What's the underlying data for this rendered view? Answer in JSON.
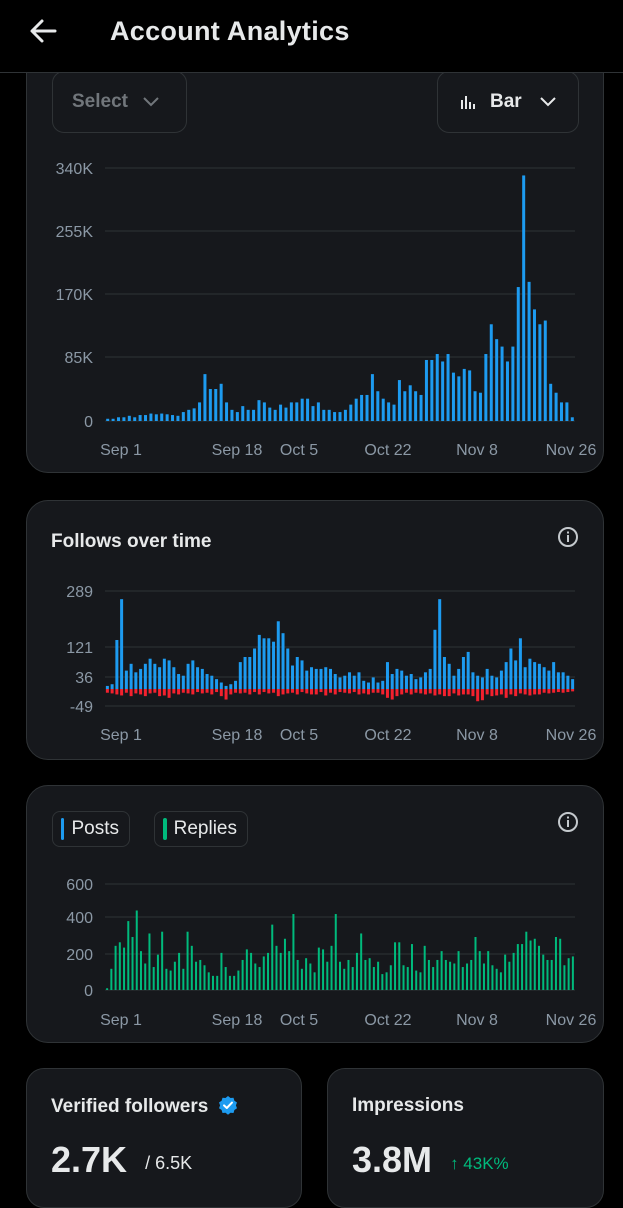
{
  "header": {
    "title": "Account Analytics"
  },
  "controls": {
    "select_label": "Select",
    "chart_type_label": "Bar"
  },
  "colors": {
    "blue": "#1d9bf0",
    "red": "#f4212e",
    "green": "#00ba7c",
    "grid": "#2f3336",
    "tick": "#8b98a5"
  },
  "chart_data": [
    {
      "id": "impressions",
      "type": "bar",
      "title": "",
      "xticks": [
        "Sep 1",
        "Sep 18",
        "Oct 5",
        "Oct 22",
        "Nov 8",
        "Nov 26"
      ],
      "yticks": [
        "340K",
        "255K",
        "170K",
        "85K",
        "0"
      ],
      "ylim": [
        0,
        340000
      ],
      "grid": true,
      "series": [
        {
          "color": "#1d9bf0",
          "values": [
            3000,
            3000,
            5000,
            5000,
            7000,
            5000,
            8000,
            8000,
            10000,
            9000,
            10000,
            9000,
            8000,
            7000,
            12000,
            15000,
            17000,
            25000,
            63000,
            43000,
            43000,
            50000,
            25000,
            15000,
            12000,
            20000,
            15000,
            15000,
            28000,
            25000,
            18000,
            15000,
            22000,
            18000,
            25000,
            25000,
            30000,
            30000,
            20000,
            25000,
            15000,
            15000,
            12000,
            12000,
            15000,
            22000,
            30000,
            35000,
            35000,
            63000,
            40000,
            30000,
            25000,
            22000,
            55000,
            40000,
            48000,
            40000,
            35000,
            82000,
            82000,
            90000,
            80000,
            90000,
            65000,
            60000,
            70000,
            68000,
            40000,
            38000,
            90000,
            130000,
            110000,
            100000,
            80000,
            100000,
            180000,
            330000,
            187000,
            150000,
            130000,
            135000,
            50000,
            38000,
            25000,
            25000,
            5000
          ]
        }
      ]
    },
    {
      "id": "follows",
      "type": "bar",
      "title": "Follows over time",
      "xticks": [
        "Sep 1",
        "Sep 18",
        "Oct 5",
        "Oct 22",
        "Nov 8",
        "Nov 26"
      ],
      "yticks": [
        "289",
        "121",
        "36",
        "-49"
      ],
      "ylim": [
        -49,
        289
      ],
      "grid": true,
      "series": [
        {
          "color": "#1d9bf0",
          "values": [
            10,
            15,
            145,
            265,
            55,
            75,
            50,
            60,
            75,
            90,
            75,
            65,
            90,
            85,
            65,
            45,
            40,
            75,
            85,
            65,
            60,
            45,
            40,
            30,
            20,
            10,
            15,
            25,
            80,
            95,
            95,
            120,
            160,
            150,
            150,
            140,
            200,
            165,
            120,
            70,
            95,
            85,
            55,
            65,
            60,
            60,
            65,
            60,
            45,
            35,
            40,
            50,
            40,
            50,
            25,
            20,
            35,
            20,
            25,
            80,
            45,
            60,
            55,
            40,
            45,
            30,
            35,
            50,
            60,
            175,
            265,
            95,
            75,
            40,
            60,
            95,
            110,
            50,
            40,
            35,
            60,
            40,
            35,
            55,
            80,
            120,
            85,
            150,
            65,
            90,
            80,
            75,
            65,
            55,
            80,
            50,
            50,
            40,
            30
          ],
          "negative": [
            -10,
            -12,
            -15,
            -18,
            -10,
            -20,
            -12,
            -15,
            -20,
            -12,
            -10,
            -20,
            -18,
            -25,
            -12,
            -15,
            -10,
            -12,
            -15,
            -8,
            -12,
            -10,
            -15,
            -8,
            -20,
            -30,
            -15,
            -10,
            -12,
            -10,
            -15,
            -8,
            -15,
            -8,
            -12,
            -10,
            -20,
            -15,
            -12,
            -10,
            -15,
            -8,
            -12,
            -15,
            -15,
            -8,
            -18,
            -10,
            -15,
            -8,
            -10,
            -12,
            -8,
            -15,
            -12,
            -15,
            -10,
            -10,
            -15,
            -25,
            -30,
            -20,
            -15,
            -10,
            -15,
            -10,
            -12,
            -15,
            -12,
            -18,
            -15,
            -20,
            -20,
            -12,
            -18,
            -15,
            -15,
            -20,
            -35,
            -32,
            -15,
            -20,
            -18,
            -15,
            -25,
            -15,
            -20,
            -12,
            -15,
            -18,
            -15,
            -15,
            -10,
            -12,
            -10,
            -8,
            -10,
            -8,
            -6
          ]
        }
      ]
    },
    {
      "id": "posts_replies",
      "type": "bar",
      "title": "",
      "xticks": [
        "Sep 1",
        "Sep 18",
        "Oct 5",
        "Oct 22",
        "Nov 8",
        "Nov 26"
      ],
      "yticks": [
        "600",
        "400",
        "200",
        "0"
      ],
      "ylim": [
        0,
        600
      ],
      "grid": true,
      "legend": [
        {
          "name": "Posts",
          "color": "#1d9bf0"
        },
        {
          "name": "Replies",
          "color": "#00ba7c"
        }
      ],
      "series": [
        {
          "name": "Replies",
          "color": "#00ba7c",
          "values": [
            10,
            120,
            250,
            270,
            240,
            390,
            300,
            450,
            220,
            150,
            320,
            130,
            200,
            330,
            120,
            110,
            160,
            210,
            120,
            330,
            250,
            160,
            170,
            140,
            100,
            80,
            80,
            210,
            130,
            80,
            80,
            110,
            170,
            230,
            210,
            150,
            130,
            190,
            210,
            370,
            250,
            210,
            290,
            220,
            430,
            170,
            120,
            180,
            150,
            100,
            240,
            230,
            160,
            250,
            430,
            160,
            120,
            170,
            130,
            210,
            320,
            170,
            180,
            130,
            160,
            90,
            100,
            140,
            270,
            270,
            140,
            130,
            260,
            110,
            100,
            250,
            170,
            130,
            170,
            220,
            170,
            160,
            150,
            220,
            130,
            150,
            170,
            300,
            220,
            150,
            220,
            140,
            120,
            100,
            200,
            160,
            210,
            260,
            260,
            330,
            280,
            290,
            250,
            200,
            170,
            170,
            300,
            290,
            140,
            180,
            190
          ]
        }
      ]
    }
  ],
  "legend": {
    "posts": "Posts",
    "replies": "Replies"
  },
  "stats": {
    "verified_label": "Verified followers",
    "verified_value": "2.7K",
    "verified_total": "/ 6.5K",
    "impressions_label": "Impressions",
    "impressions_value": "3.8M",
    "impressions_change": "↑ 43K%"
  }
}
